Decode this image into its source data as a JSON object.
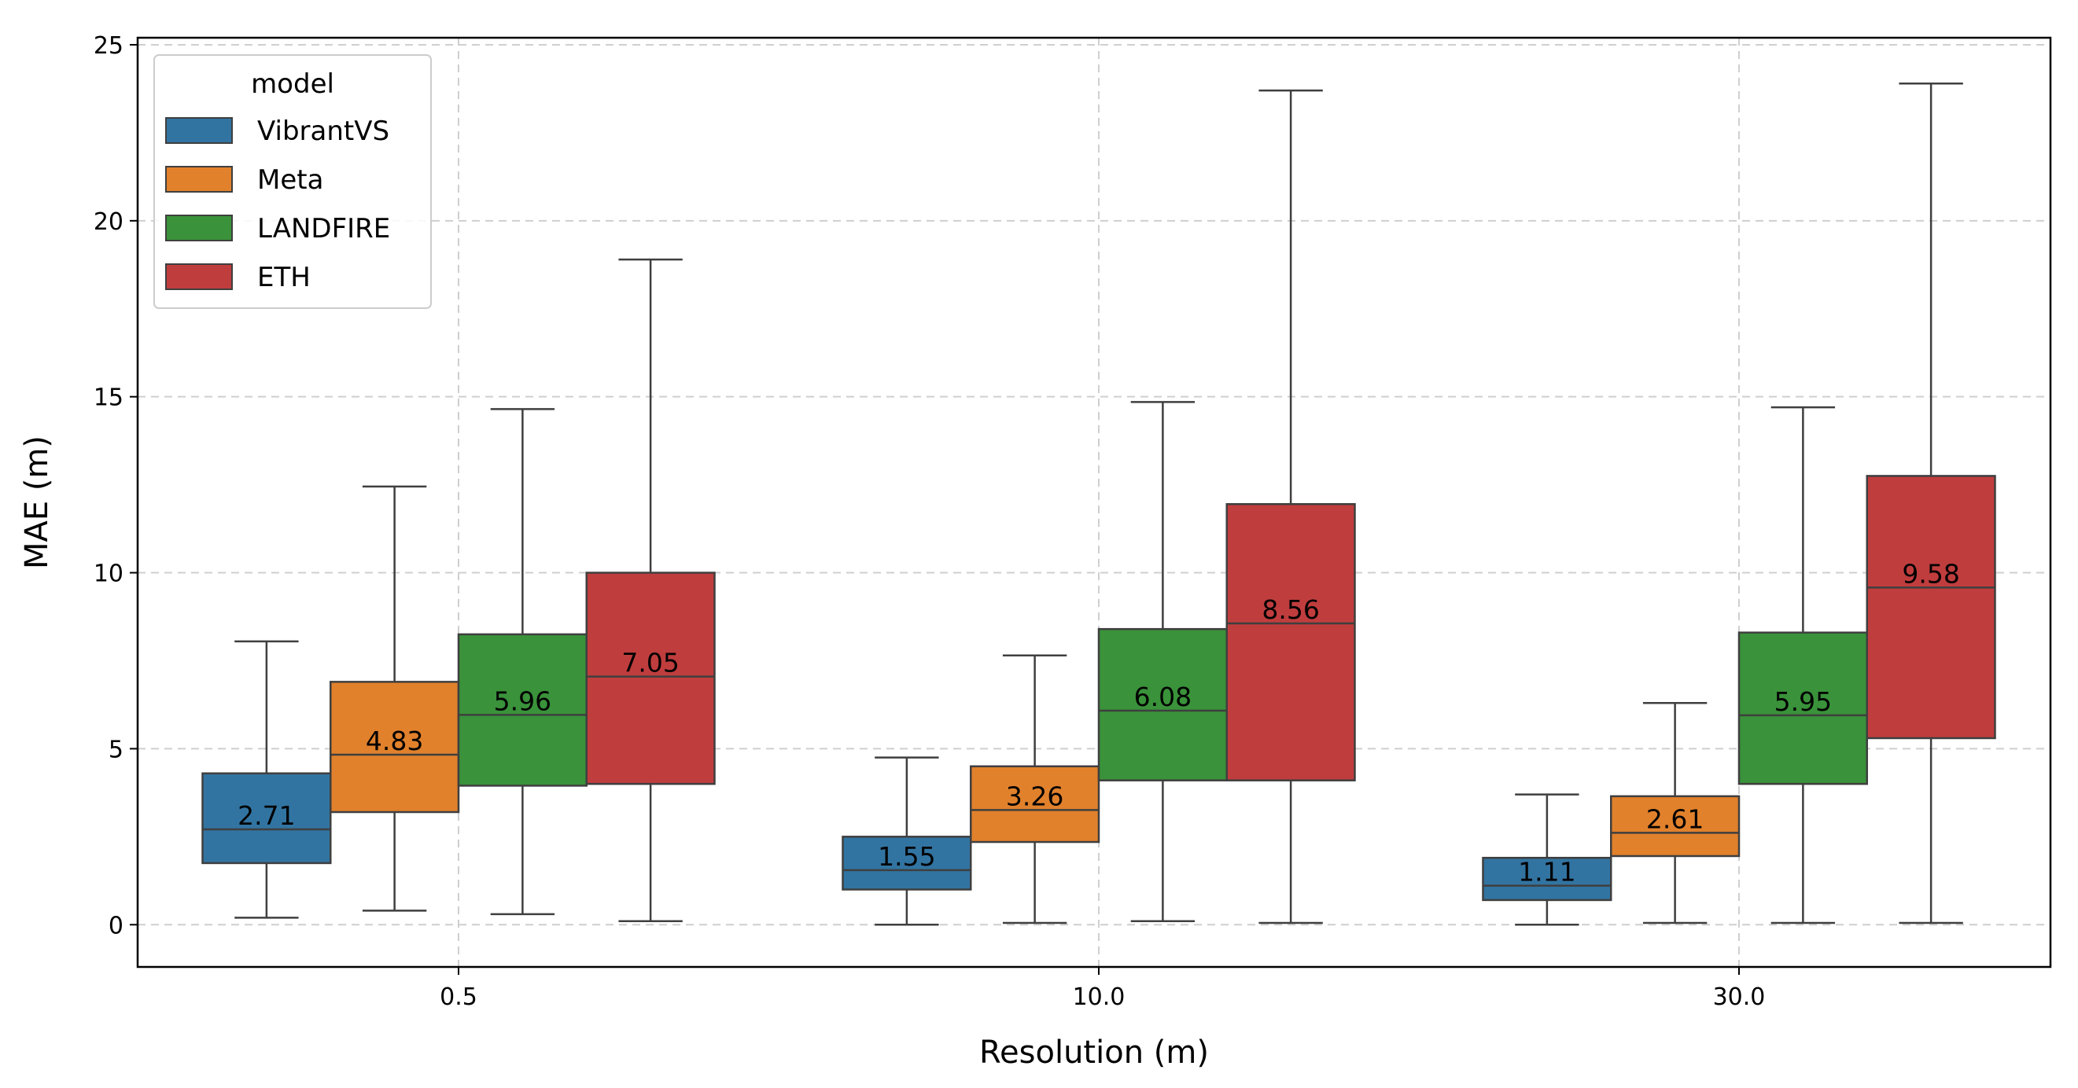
{
  "chart_data": {
    "type": "box",
    "title": "",
    "xlabel": "Resolution (m)",
    "ylabel": "MAE (m)",
    "ylim": [
      -1.2,
      25.2
    ],
    "yticks": [
      0,
      5,
      10,
      15,
      20,
      25
    ],
    "categories": [
      "0.5",
      "10.0",
      "30.0"
    ],
    "legend": {
      "title": "model",
      "position": "top-left"
    },
    "grid": true,
    "series": [
      {
        "name": "VibrantVS",
        "color": "#3274a1",
        "boxes": [
          {
            "category": "0.5",
            "whisker_low": 0.2,
            "q1": 1.75,
            "median": 2.71,
            "q3": 4.3,
            "whisker_high": 8.05,
            "label": "2.71"
          },
          {
            "category": "10.0",
            "whisker_low": 0.0,
            "q1": 1.0,
            "median": 1.55,
            "q3": 2.5,
            "whisker_high": 4.75,
            "label": "1.55"
          },
          {
            "category": "30.0",
            "whisker_low": 0.0,
            "q1": 0.7,
            "median": 1.11,
            "q3": 1.9,
            "whisker_high": 3.7,
            "label": "1.11"
          }
        ]
      },
      {
        "name": "Meta",
        "color": "#e1812c",
        "boxes": [
          {
            "category": "0.5",
            "whisker_low": 0.4,
            "q1": 3.2,
            "median": 4.83,
            "q3": 6.9,
            "whisker_high": 12.45,
            "label": "4.83"
          },
          {
            "category": "10.0",
            "whisker_low": 0.05,
            "q1": 2.35,
            "median": 3.26,
            "q3": 4.5,
            "whisker_high": 7.65,
            "label": "3.26"
          },
          {
            "category": "30.0",
            "whisker_low": 0.05,
            "q1": 1.95,
            "median": 2.61,
            "q3": 3.65,
            "whisker_high": 6.3,
            "label": "2.61"
          }
        ]
      },
      {
        "name": "LANDFIRE",
        "color": "#3a923a",
        "boxes": [
          {
            "category": "0.5",
            "whisker_low": 0.3,
            "q1": 3.95,
            "median": 5.96,
            "q3": 8.25,
            "whisker_high": 14.65,
            "label": "5.96"
          },
          {
            "category": "10.0",
            "whisker_low": 0.1,
            "q1": 4.1,
            "median": 6.08,
            "q3": 8.4,
            "whisker_high": 14.85,
            "label": "6.08"
          },
          {
            "category": "30.0",
            "whisker_low": 0.05,
            "q1": 4.0,
            "median": 5.95,
            "q3": 8.3,
            "whisker_high": 14.7,
            "label": "5.95"
          }
        ]
      },
      {
        "name": "ETH",
        "color": "#c03d3e",
        "boxes": [
          {
            "category": "0.5",
            "whisker_low": 0.1,
            "q1": 4.0,
            "median": 7.05,
            "q3": 10.0,
            "whisker_high": 18.9,
            "label": "7.05"
          },
          {
            "category": "10.0",
            "whisker_low": 0.05,
            "q1": 4.1,
            "median": 8.56,
            "q3": 11.95,
            "whisker_high": 23.7,
            "label": "8.56"
          },
          {
            "category": "30.0",
            "whisker_low": 0.05,
            "q1": 5.3,
            "median": 9.58,
            "q3": 12.75,
            "whisker_high": 23.9,
            "label": "9.58"
          }
        ]
      }
    ]
  }
}
